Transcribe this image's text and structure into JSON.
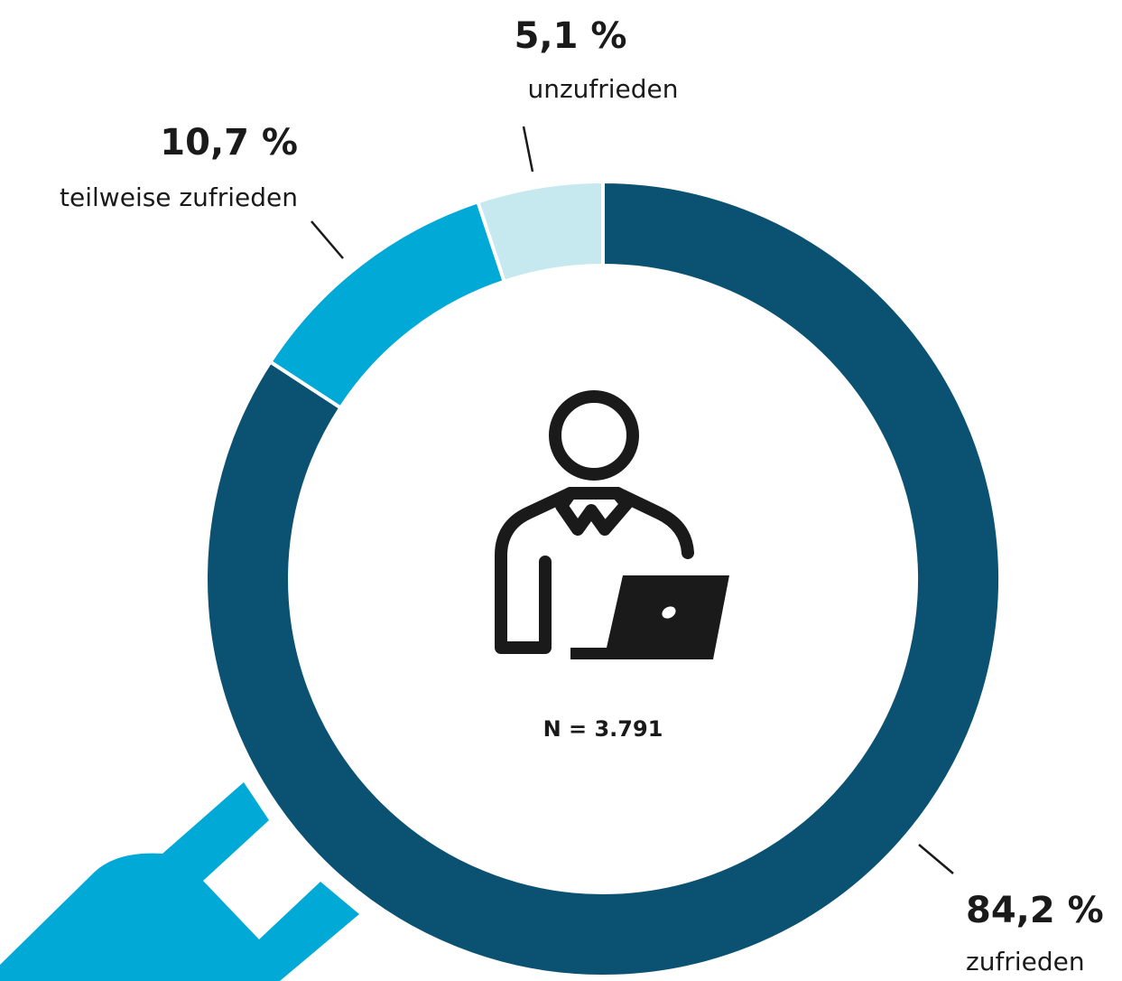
{
  "chart_data": {
    "type": "donut",
    "categories": [
      "zufrieden",
      "teilweise zufrieden",
      "unzufrieden"
    ],
    "values": [
      84.2,
      10.7,
      5.1
    ],
    "value_labels": [
      "84,2 %",
      "10,7 %",
      "5,1 %"
    ],
    "colors": [
      "#0b5272",
      "#00a9d6",
      "#c6e8ef"
    ],
    "annotation": "N = 3.791"
  }
}
